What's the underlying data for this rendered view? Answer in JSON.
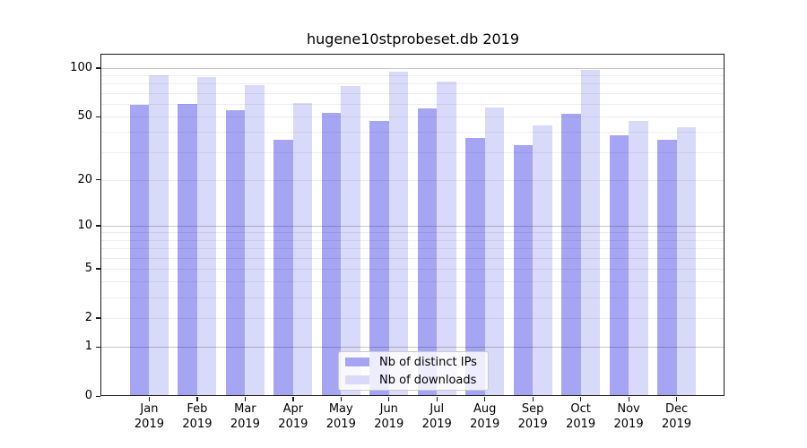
{
  "chart_data": {
    "type": "bar",
    "title": "hugene10stprobeset.db 2019",
    "categories": [
      "Jan",
      "Feb",
      "Mar",
      "Apr",
      "May",
      "Jun",
      "Jul",
      "Aug",
      "Sep",
      "Oct",
      "Nov",
      "Dec"
    ],
    "xlabel_year": "2019",
    "series": [
      {
        "name": "Nb of distinct IPs",
        "color": "#a5a5f4",
        "values": [
          59,
          60,
          55,
          36,
          53,
          47,
          56,
          37,
          33,
          52,
          38,
          36
        ]
      },
      {
        "name": "Nb of downloads",
        "color": "#d9d9f9",
        "values": [
          90,
          88,
          78,
          61,
          77,
          95,
          83,
          57,
          44,
          98,
          47,
          43
        ]
      }
    ],
    "yscale": "log1p",
    "ylim": [
      0,
      121
    ],
    "yticks": [
      0,
      1,
      2,
      5,
      10,
      20,
      50,
      100
    ],
    "major_gridlines": [
      1,
      10,
      100
    ],
    "minor_gridlines": [
      2,
      3,
      4,
      5,
      6,
      7,
      8,
      9,
      20,
      30,
      40,
      50,
      60,
      70,
      80,
      90
    ],
    "grid": true,
    "legend_position": "lower center"
  }
}
